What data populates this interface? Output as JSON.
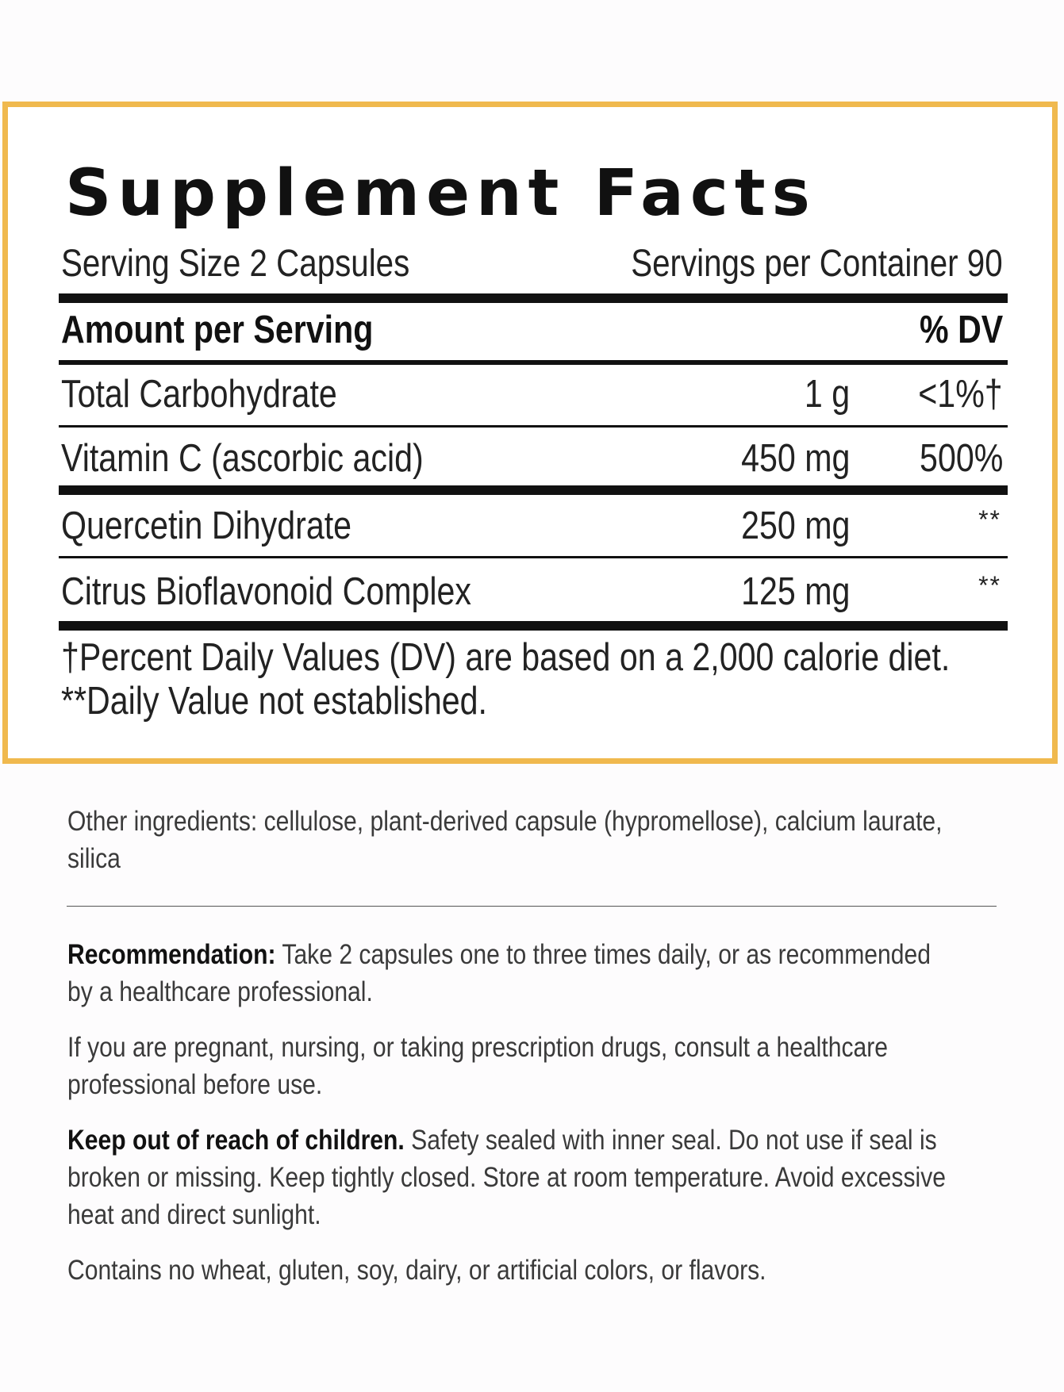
{
  "facts": {
    "title": "Supplement Facts",
    "serving_size": "Serving Size 2 Capsules",
    "servings_per_container": "Servings per Container 90",
    "header_amount": "Amount per Serving",
    "header_dv": "% DV",
    "rows": [
      {
        "name": "Total Carbohydrate",
        "amount": "1 g",
        "dv": "<1%†"
      },
      {
        "name": "Vitamin C (ascorbic acid)",
        "amount": "450 mg",
        "dv": "500%"
      },
      {
        "name": "Quercetin Dihydrate",
        "amount": "250 mg",
        "dv": "**"
      },
      {
        "name": "Citrus Bioflavonoid Complex",
        "amount": "125 mg",
        "dv": "**"
      }
    ],
    "footnote_dv": "†Percent Daily Values (DV) are based on a 2,000 calorie diet.",
    "footnote_na": "**Daily Value not established."
  },
  "other_ingredients": "Other ingredients: cellulose, plant-derived capsule (hypromellose), calcium laurate, silica",
  "recommendation": {
    "label": "Recommendation:",
    "text": "Take 2 capsules one to three times daily, or as recommended by a healthcare professional."
  },
  "pregnancy_warning": "If you are pregnant, nursing, or taking prescription drugs, consult a healthcare professional before use.",
  "safety": {
    "label": "Keep out of reach of children.",
    "text": "Safety sealed with inner seal. Do not use if seal is broken or missing. Keep tightly closed. Store at room temperature. Avoid excessive heat and direct sunlight."
  },
  "allergens": "Contains no wheat, gluten, soy, dairy, or artificial colors, or flavors.",
  "colors": {
    "panel_border": "#f0b94e",
    "text_dark": "#111111",
    "text_body": "#3a3a3a"
  }
}
